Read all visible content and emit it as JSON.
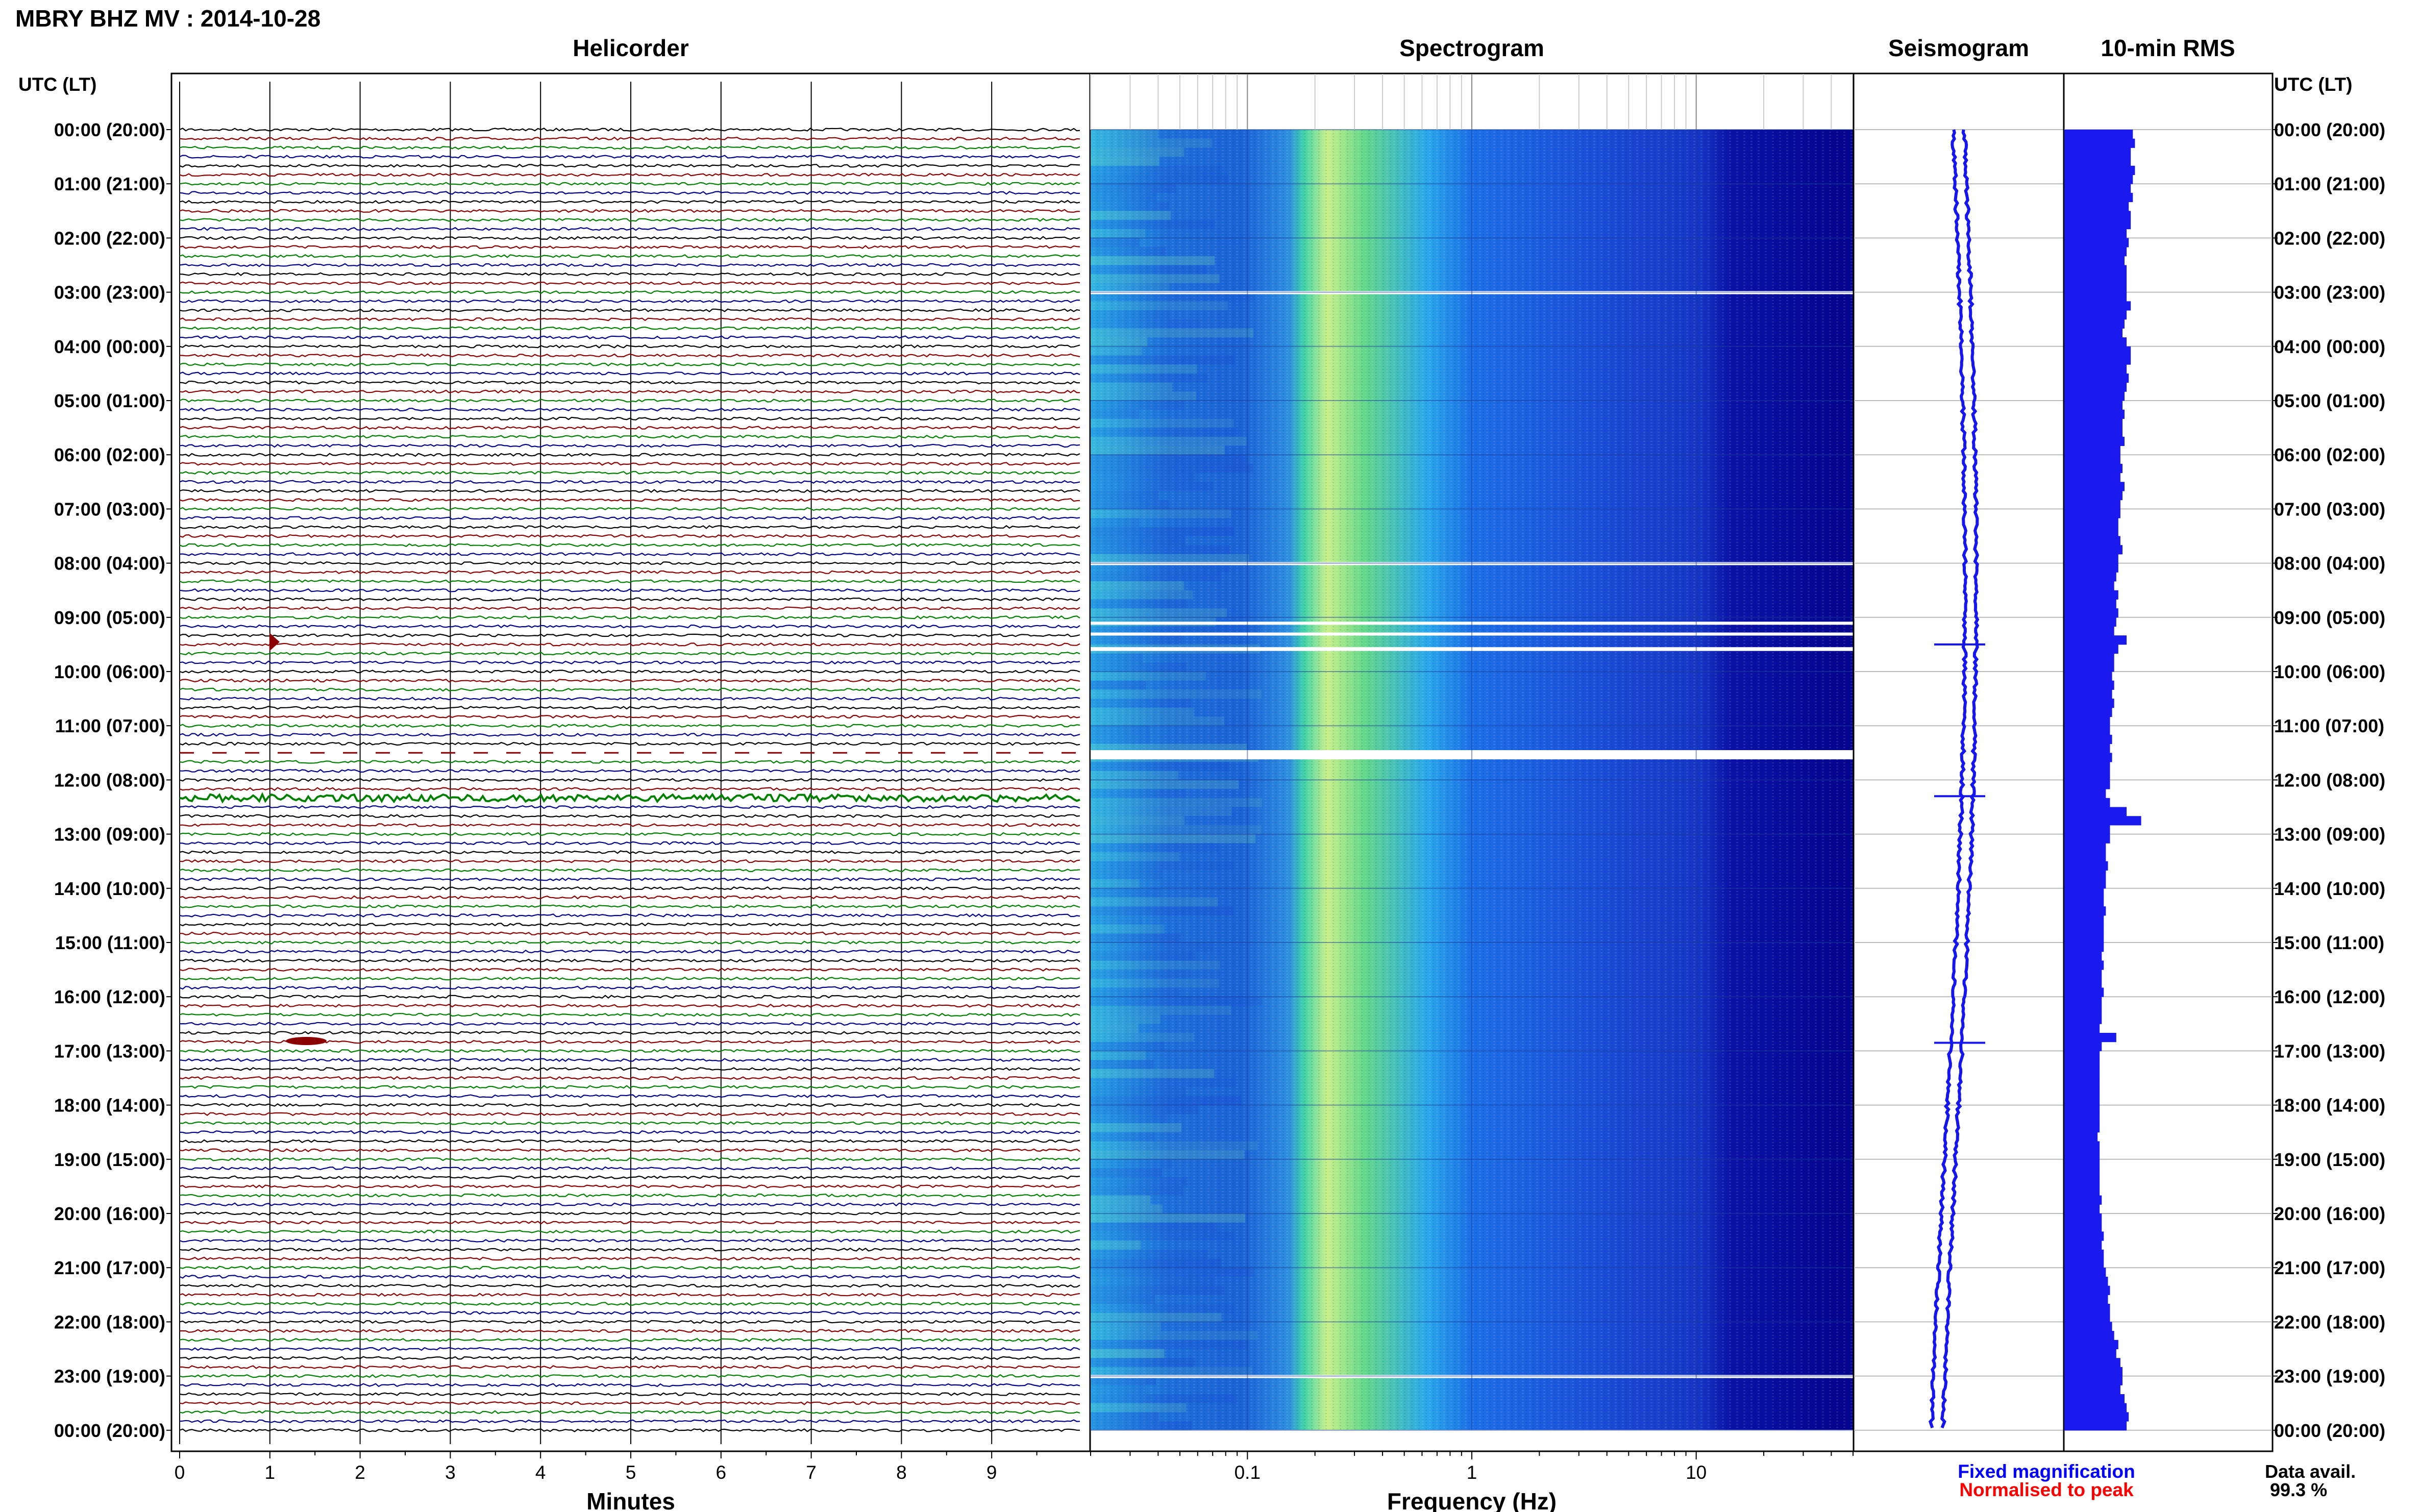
{
  "header": {
    "title": "MBRY BHZ MV : 2014-10-28",
    "time_axis_label": "UTC (LT)"
  },
  "panels": {
    "helicorder": "Helicorder",
    "spectrogram": "Spectrogram",
    "seismogram": "Seismogram",
    "rms": "10-min RMS"
  },
  "footer": {
    "minutes_label": "Minutes",
    "frequency_label": "Frequency (Hz)",
    "fixed_magnification": "Fixed magnification",
    "normalised_to_peak": "Normalised to peak",
    "data_avail_label": "Data avail.",
    "data_avail_value": "99.3 %"
  },
  "colors": {
    "trace_cycle": [
      "#000000",
      "#8b0000",
      "#008000",
      "#00008b"
    ],
    "seismogram": "#1515ee",
    "rms": "#1a1aee",
    "fixed_magnification": "#0000ff",
    "normalised_to_peak": "#ff0000",
    "spectrogram_colormap": "jet"
  },
  "chart_data": [
    {
      "type": "line",
      "name": "helicorder",
      "xlabel": "Minutes",
      "xlim": [
        0,
        10
      ],
      "x_ticks": [
        "0",
        "1",
        "2",
        "3",
        "4",
        "5",
        "6",
        "7",
        "8",
        "9"
      ],
      "y_tick_labels": [
        "00:00 (20:00)",
        "01:00 (21:00)",
        "02:00 (22:00)",
        "03:00 (23:00)",
        "04:00 (00:00)",
        "05:00 (01:00)",
        "06:00 (02:00)",
        "07:00 (03:00)",
        "08:00 (04:00)",
        "09:00 (05:00)",
        "10:00 (06:00)",
        "11:00 (07:00)",
        "12:00 (08:00)",
        "13:00 (09:00)",
        "14:00 (10:00)",
        "15:00 (11:00)",
        "16:00 (12:00)",
        "17:00 (13:00)",
        "18:00 (14:00)",
        "19:00 (15:00)",
        "20:00 (16:00)",
        "21:00 (17:00)",
        "22:00 (18:00)",
        "23:00 (19:00)",
        "00:00 (20:00)"
      ],
      "lines_per_hour": 6,
      "line_minutes": 10,
      "gaps_hours": [
        [
          11.45,
          11.62
        ]
      ]
    },
    {
      "type": "heatmap",
      "name": "spectrogram",
      "xlabel": "Frequency (Hz)",
      "x_scale": "log",
      "xlim": [
        0.02,
        50
      ],
      "x_ticks": [
        "0.1",
        "1",
        "10"
      ],
      "peak_band_hz": [
        0.2,
        0.35
      ],
      "gaps_hours": [
        [
          2.98,
          3.03
        ],
        [
          7.98,
          8.03
        ],
        [
          9.08,
          9.12
        ],
        [
          9.28,
          9.33
        ],
        [
          9.55,
          9.62
        ],
        [
          11.45,
          11.62
        ],
        [
          22.98,
          23.03
        ]
      ]
    },
    {
      "type": "line",
      "name": "seismogram",
      "events_hours": [
        9.5,
        12.3,
        16.85
      ]
    },
    {
      "type": "bar",
      "name": "10-min RMS",
      "xlim": [
        0,
        1
      ],
      "values": [
        0.33,
        0.34,
        0.32,
        0.32,
        0.34,
        0.33,
        0.32,
        0.33,
        0.31,
        0.32,
        0.32,
        0.3,
        0.31,
        0.3,
        0.29,
        0.3,
        0.3,
        0.3,
        0.3,
        0.32,
        0.3,
        0.29,
        0.28,
        0.3,
        0.32,
        0.32,
        0.3,
        0.31,
        0.3,
        0.29,
        0.28,
        0.29,
        0.28,
        0.28,
        0.29,
        0.27,
        0.27,
        0.28,
        0.27,
        0.29,
        0.28,
        0.27,
        0.27,
        0.26,
        0.26,
        0.27,
        0.28,
        0.26,
        0.26,
        0.25,
        0.24,
        0.26,
        0.25,
        0.26,
        0.25,
        0.24,
        0.3,
        0.26,
        0.24,
        0.24,
        0.23,
        0.24,
        0.23,
        0.24,
        0.23,
        0.22,
        0.22,
        0.23,
        0.22,
        0.23,
        0.22,
        0.22,
        0.22,
        0.2,
        0.22,
        0.3,
        0.37,
        0.22,
        0.22,
        0.2,
        0.2,
        0.21,
        0.2,
        0.2,
        0.19,
        0.19,
        0.2,
        0.19,
        0.19,
        0.19,
        0.19,
        0.18,
        0.19,
        0.18,
        0.18,
        0.19,
        0.18,
        0.18,
        0.18,
        0.17,
        0.25,
        0.18,
        0.17,
        0.17,
        0.17,
        0.17,
        0.17,
        0.17,
        0.17,
        0.17,
        0.17,
        0.16,
        0.17,
        0.17,
        0.17,
        0.17,
        0.17,
        0.17,
        0.18,
        0.17,
        0.18,
        0.18,
        0.19,
        0.18,
        0.19,
        0.19,
        0.2,
        0.21,
        0.22,
        0.21,
        0.22,
        0.22,
        0.23,
        0.24,
        0.26,
        0.25,
        0.27,
        0.28,
        0.28,
        0.27,
        0.29,
        0.3,
        0.31,
        0.3
      ]
    }
  ]
}
